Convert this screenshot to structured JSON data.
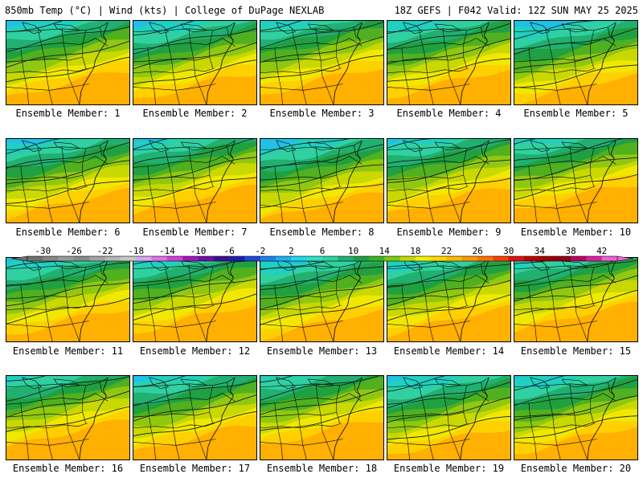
{
  "header": {
    "left": "850mb Temp (°C) | Wind (kts) | College of DuPage NEXLAB",
    "right": "18Z GEFS | F042 Valid: 12Z SUN MAY 25 2025"
  },
  "members": [
    {
      "label": "Ensemble Member: 1",
      "shift": 0
    },
    {
      "label": "Ensemble Member: 2",
      "shift": 3
    },
    {
      "label": "Ensemble Member: 3",
      "shift": -4
    },
    {
      "label": "Ensemble Member: 4",
      "shift": -1
    },
    {
      "label": "Ensemble Member: 5",
      "shift": 6
    },
    {
      "label": "Ensemble Member: 6",
      "shift": 2
    },
    {
      "label": "Ensemble Member: 7",
      "shift": -3
    },
    {
      "label": "Ensemble Member: 8",
      "shift": 5
    },
    {
      "label": "Ensemble Member: 9",
      "shift": -2
    },
    {
      "label": "Ensemble Member: 10",
      "shift": -6
    },
    {
      "label": "Ensemble Member: 11",
      "shift": 1
    },
    {
      "label": "Ensemble Member: 12",
      "shift": -3
    },
    {
      "label": "Ensemble Member: 13",
      "shift": 4
    },
    {
      "label": "Ensemble Member: 14",
      "shift": 0
    },
    {
      "label": "Ensemble Member: 15",
      "shift": -5
    },
    {
      "label": "Ensemble Member: 16",
      "shift": -7
    },
    {
      "label": "Ensemble Member: 17",
      "shift": -1
    },
    {
      "label": "Ensemble Member: 18",
      "shift": -8
    },
    {
      "label": "Ensemble Member: 19",
      "shift": 3
    },
    {
      "label": "Ensemble Member: 20",
      "shift": 1
    }
  ],
  "colorbar": {
    "min": -32,
    "max": 44,
    "step": 2,
    "ticks": [
      "-30",
      "-26",
      "-22",
      "-18",
      "-14",
      "-10",
      "-6",
      "-2",
      "2",
      "6",
      "10",
      "14",
      "18",
      "22",
      "26",
      "30",
      "34",
      "38",
      "42"
    ],
    "colors": [
      "#707070",
      "#868686",
      "#9a9a9a",
      "#8a8a8a",
      "#a4a4a4",
      "#b6b6b6",
      "#c8c8c8",
      "#d8a8f0",
      "#e070e8",
      "#d040d8",
      "#a018c0",
      "#7010a8",
      "#3a1290",
      "#2020b0",
      "#2048d8",
      "#2080f0",
      "#20b0f0",
      "#20d8e8",
      "#30e0c8",
      "#30d0a0",
      "#20b070",
      "#20a040",
      "#40b020",
      "#80c810",
      "#c0d800",
      "#f0f000",
      "#ffd800",
      "#ffb800",
      "#ff9800",
      "#ff7000",
      "#f84000",
      "#e01010",
      "#c00000",
      "#a00000",
      "#900018",
      "#c00060",
      "#e020a0",
      "#f060d8"
    ]
  }
}
